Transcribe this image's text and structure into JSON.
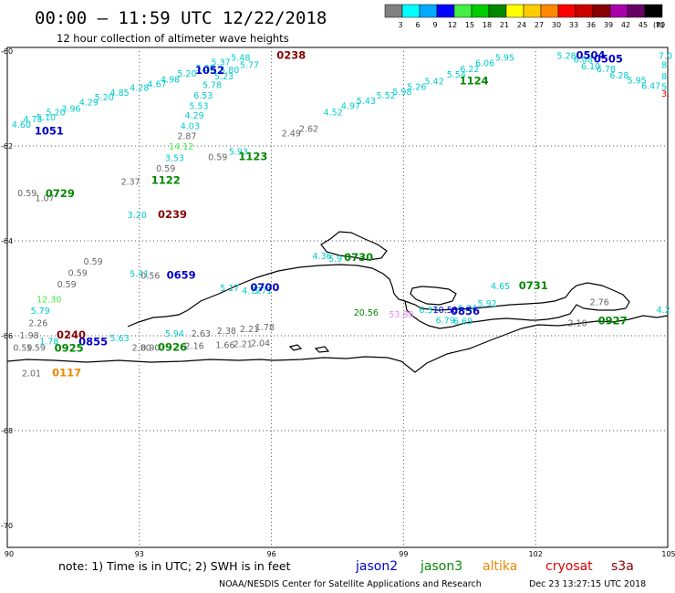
{
  "header": {
    "title": "00:00 – 11:59 UTC 12/22/2018",
    "subtitle": "12 hour collection of altimeter wave heights"
  },
  "colorbar": {
    "labels": [
      "3",
      "6",
      "9",
      "12",
      "15",
      "18",
      "21",
      "24",
      "27",
      "30",
      "33",
      "36",
      "39",
      "42",
      "45",
      "70"
    ],
    "unit": "(ft)",
    "colors": [
      "#808080",
      "#00ffff",
      "#00aaff",
      "#0000ff",
      "#44ee44",
      "#00cc00",
      "#008800",
      "#ffff00",
      "#ffcc00",
      "#ff8800",
      "#ff0000",
      "#cc0000",
      "#880000",
      "#aa00aa",
      "#660066",
      "#000000"
    ]
  },
  "axes": {
    "lon_labels": [
      "90",
      "93",
      "96",
      "99",
      "102",
      "105"
    ],
    "lat_labels": [
      "-60",
      "-62",
      "-64",
      "-66",
      "-68",
      "-70"
    ],
    "lon_range": [
      90,
      105
    ],
    "lat_range": [
      -70,
      -60
    ]
  },
  "points": [
    {
      "text": "4.60",
      "lon": 90.32,
      "lat": -61.62,
      "color": "#00cccc"
    },
    {
      "text": "4.75",
      "lon": 90.58,
      "lat": -61.5,
      "color": "#00cccc"
    },
    {
      "text": "5.10",
      "lon": 90.88,
      "lat": -61.46,
      "color": "#00cccc"
    },
    {
      "text": "5.20",
      "lon": 91.1,
      "lat": -61.36,
      "color": "#00cccc"
    },
    {
      "text": "3.96",
      "lon": 91.45,
      "lat": -61.28,
      "color": "#00cccc"
    },
    {
      "text": "4.29",
      "lon": 91.85,
      "lat": -61.14,
      "color": "#00cccc"
    },
    {
      "text": "5.20",
      "lon": 92.2,
      "lat": -61.04,
      "color": "#00cccc"
    },
    {
      "text": "4.85",
      "lon": 92.55,
      "lat": -60.94,
      "color": "#00cccc"
    },
    {
      "text": "4.28",
      "lon": 93.0,
      "lat": -60.84,
      "color": "#00cccc"
    },
    {
      "text": "4.67",
      "lon": 93.4,
      "lat": -60.76,
      "color": "#00cccc"
    },
    {
      "text": "4.98",
      "lon": 93.7,
      "lat": -60.66,
      "color": "#00cccc"
    },
    {
      "text": "5.20",
      "lon": 94.08,
      "lat": -60.54,
      "color": "#00cccc"
    },
    {
      "text": "5.30",
      "lon": 94.5,
      "lat": -60.42,
      "color": "#00cccc"
    },
    {
      "text": "5.37",
      "lon": 94.85,
      "lat": -60.3,
      "color": "#00cccc"
    },
    {
      "text": "5.48",
      "lon": 95.3,
      "lat": -60.2,
      "color": "#00cccc"
    },
    {
      "text": "5.77",
      "lon": 95.5,
      "lat": -60.36,
      "color": "#00cccc"
    },
    {
      "text": "5.80",
      "lon": 95.05,
      "lat": -60.46,
      "color": "#00cccc"
    },
    {
      "text": "5.23",
      "lon": 94.92,
      "lat": -60.6,
      "color": "#00cccc"
    },
    {
      "text": "5.78",
      "lon": 94.65,
      "lat": -60.78,
      "color": "#00cccc"
    },
    {
      "text": "6.53",
      "lon": 94.45,
      "lat": -61.0,
      "color": "#00cccc"
    },
    {
      "text": "5.53",
      "lon": 94.35,
      "lat": -61.22,
      "color": "#00cccc"
    },
    {
      "text": "4.29",
      "lon": 94.25,
      "lat": -61.42,
      "color": "#00cccc"
    },
    {
      "text": "4.03",
      "lon": 94.15,
      "lat": -61.64,
      "color": "#00cccc"
    },
    {
      "text": "2.87",
      "lon": 94.08,
      "lat": -61.86,
      "color": "#666666"
    },
    {
      "text": "14.12",
      "lon": 93.95,
      "lat": -62.08,
      "color": "#44ee44"
    },
    {
      "text": "3.53",
      "lon": 93.8,
      "lat": -62.32,
      "color": "#00cccc"
    },
    {
      "text": "0.59",
      "lon": 93.6,
      "lat": -62.54,
      "color": "#666666"
    },
    {
      "text": "2.37",
      "lon": 92.8,
      "lat": -62.82,
      "color": "#666666"
    },
    {
      "text": "0.59",
      "lon": 94.78,
      "lat": -62.3,
      "color": "#666666"
    },
    {
      "text": "5.93",
      "lon": 95.25,
      "lat": -62.18,
      "color": "#00cccc"
    },
    {
      "text": "0.59",
      "lon": 90.45,
      "lat": -63.06,
      "color": "#666666"
    },
    {
      "text": "1.07",
      "lon": 90.85,
      "lat": -63.16,
      "color": "#666666"
    },
    {
      "text": "3.20",
      "lon": 92.95,
      "lat": -63.52,
      "color": "#00cccc"
    },
    {
      "text": "2.49",
      "lon": 96.45,
      "lat": -61.8,
      "color": "#666666"
    },
    {
      "text": "2.62",
      "lon": 96.85,
      "lat": -61.7,
      "color": "#666666"
    },
    {
      "text": "4.52",
      "lon": 97.4,
      "lat": -61.36,
      "color": "#00cccc"
    },
    {
      "text": "4.97",
      "lon": 97.8,
      "lat": -61.22,
      "color": "#00cccc"
    },
    {
      "text": "5.43",
      "lon": 98.15,
      "lat": -61.12,
      "color": "#00cccc"
    },
    {
      "text": "5.52",
      "lon": 98.6,
      "lat": -61.0,
      "color": "#00cccc"
    },
    {
      "text": "5.98",
      "lon": 98.97,
      "lat": -60.92,
      "color": "#00cccc"
    },
    {
      "text": "5.26",
      "lon": 99.3,
      "lat": -60.82,
      "color": "#00cccc"
    },
    {
      "text": "5.42",
      "lon": 99.7,
      "lat": -60.7,
      "color": "#00cccc"
    },
    {
      "text": "5.54",
      "lon": 100.2,
      "lat": -60.56,
      "color": "#00cccc"
    },
    {
      "text": "6.22",
      "lon": 100.5,
      "lat": -60.44,
      "color": "#00cccc"
    },
    {
      "text": "6.06",
      "lon": 100.85,
      "lat": -60.32,
      "color": "#00cccc"
    },
    {
      "text": "5.95",
      "lon": 101.3,
      "lat": -60.2,
      "color": "#00cccc"
    },
    {
      "text": "5.28",
      "lon": 102.7,
      "lat": -60.16,
      "color": "#00cccc"
    },
    {
      "text": "6.08",
      "lon": 103.08,
      "lat": -60.24,
      "color": "#00cccc"
    },
    {
      "text": "6.10",
      "lon": 103.25,
      "lat": -60.38,
      "color": "#00cccc"
    },
    {
      "text": "6.78",
      "lon": 103.6,
      "lat": -60.44,
      "color": "#00cccc"
    },
    {
      "text": "6.28",
      "lon": 103.9,
      "lat": -60.58,
      "color": "#00cccc"
    },
    {
      "text": "5.95",
      "lon": 104.3,
      "lat": -60.68,
      "color": "#00cccc"
    },
    {
      "text": "6.47",
      "lon": 104.62,
      "lat": -60.8,
      "color": "#00cccc"
    },
    {
      "text": "7.0",
      "lon": 104.95,
      "lat": -60.16,
      "color": "#00cccc"
    },
    {
      "text": "8.",
      "lon": 104.95,
      "lat": -60.36,
      "color": "#00cccc"
    },
    {
      "text": "8.",
      "lon": 104.95,
      "lat": -60.6,
      "color": "#00cccc"
    },
    {
      "text": "5.",
      "lon": 104.95,
      "lat": -60.82,
      "color": "#00cccc"
    },
    {
      "text": "3.",
      "lon": 104.95,
      "lat": -60.96,
      "color": "#ff0000"
    },
    {
      "text": "0.59",
      "lon": 91.95,
      "lat": -64.5,
      "color": "#666666"
    },
    {
      "text": "0.59",
      "lon": 91.6,
      "lat": -64.74,
      "color": "#666666"
    },
    {
      "text": "0.59",
      "lon": 91.35,
      "lat": -64.98,
      "color": "#666666"
    },
    {
      "text": "12.30",
      "lon": 90.95,
      "lat": -65.3,
      "color": "#44ee44"
    },
    {
      "text": "5.79",
      "lon": 90.75,
      "lat": -65.54,
      "color": "#00cccc"
    },
    {
      "text": "2.26",
      "lon": 90.7,
      "lat": -65.8,
      "color": "#666666"
    },
    {
      "text": "1.98",
      "lon": 90.5,
      "lat": -66.06,
      "color": "#666666"
    },
    {
      "text": "1.78",
      "lon": 90.95,
      "lat": -66.18,
      "color": "#00cccc"
    },
    {
      "text": "0.59",
      "lon": 90.35,
      "lat": -66.32,
      "color": "#666666"
    },
    {
      "text": "1.59",
      "lon": 90.65,
      "lat": -66.32,
      "color": "#666666"
    },
    {
      "text": "2.01",
      "lon": 90.55,
      "lat": -66.86,
      "color": "#666666"
    },
    {
      "text": "5.63",
      "lon": 92.55,
      "lat": -66.12,
      "color": "#00cccc"
    },
    {
      "text": "5.41",
      "lon": 93.0,
      "lat": -64.76,
      "color": "#00cccc"
    },
    {
      "text": "0.56",
      "lon": 93.25,
      "lat": -64.8,
      "color": "#666666"
    },
    {
      "text": "5.94",
      "lon": 93.8,
      "lat": -66.02,
      "color": "#00cccc"
    },
    {
      "text": "2.80",
      "lon": 93.05,
      "lat": -66.32,
      "color": "#666666"
    },
    {
      "text": "0.90",
      "lon": 93.25,
      "lat": -66.32,
      "color": "#666666"
    },
    {
      "text": "2.63",
      "lon": 94.4,
      "lat": -66.02,
      "color": "#666666"
    },
    {
      "text": "2.16",
      "lon": 94.25,
      "lat": -66.28,
      "color": "#666666"
    },
    {
      "text": "2.38",
      "lon": 94.98,
      "lat": -65.96,
      "color": "#666666"
    },
    {
      "text": "1.66",
      "lon": 94.95,
      "lat": -66.26,
      "color": "#666666"
    },
    {
      "text": "2.21",
      "lon": 95.5,
      "lat": -65.92,
      "color": "#666666"
    },
    {
      "text": "2.21",
      "lon": 95.35,
      "lat": -66.24,
      "color": "#666666"
    },
    {
      "text": "1.78",
      "lon": 95.85,
      "lat": -65.88,
      "color": "#666666"
    },
    {
      "text": "2.04",
      "lon": 95.75,
      "lat": -66.22,
      "color": "#666666"
    },
    {
      "text": "5.17",
      "lon": 95.05,
      "lat": -65.06,
      "color": "#00cccc"
    },
    {
      "text": "4.77",
      "lon": 95.55,
      "lat": -65.12,
      "color": "#00cccc"
    },
    {
      "text": "5.71",
      "lon": 95.8,
      "lat": -65.12,
      "color": "#00cccc"
    },
    {
      "text": "4.36",
      "lon": 97.15,
      "lat": -64.38,
      "color": "#00cccc"
    },
    {
      "text": "5.9",
      "lon": 97.45,
      "lat": -64.44,
      "color": "#00cccc"
    },
    {
      "text": "20.56",
      "lon": 98.15,
      "lat": -65.58,
      "color": "#008800"
    },
    {
      "text": "53.88",
      "lon": 98.95,
      "lat": -65.62,
      "color": "#ee88ee"
    },
    {
      "text": "6.37",
      "lon": 99.57,
      "lat": -65.52,
      "color": "#00cccc"
    },
    {
      "text": "10.50",
      "lon": 99.95,
      "lat": -65.52,
      "color": "#0000ff"
    },
    {
      "text": "6.34",
      "lon": 100.45,
      "lat": -65.48,
      "color": "#00cccc"
    },
    {
      "text": "5.92",
      "lon": 100.9,
      "lat": -65.38,
      "color": "#00cccc"
    },
    {
      "text": "6.79",
      "lon": 99.95,
      "lat": -65.74,
      "color": "#00cccc"
    },
    {
      "text": "6.69",
      "lon": 100.35,
      "lat": -65.76,
      "color": "#00cccc"
    },
    {
      "text": "4.65",
      "lon": 101.2,
      "lat": -65.02,
      "color": "#00cccc"
    },
    {
      "text": "2.76",
      "lon": 103.45,
      "lat": -65.36,
      "color": "#666666"
    },
    {
      "text": "2.10",
      "lon": 102.95,
      "lat": -65.8,
      "color": "#666666"
    },
    {
      "text": "4.2",
      "lon": 104.9,
      "lat": -65.52,
      "color": "#00cccc"
    }
  ],
  "passes": [
    {
      "text": "0238",
      "lon": 96.45,
      "lat": -60.16,
      "color": "#880000"
    },
    {
      "text": "1052",
      "lon": 94.6,
      "lat": -60.48,
      "color": "#0000cc"
    },
    {
      "text": "1051",
      "lon": 90.95,
      "lat": -61.76,
      "color": "#0000cc"
    },
    {
      "text": "1123",
      "lon": 95.58,
      "lat": -62.3,
      "color": "#008800"
    },
    {
      "text": "1122",
      "lon": 93.6,
      "lat": -62.8,
      "color": "#008800"
    },
    {
      "text": "0729",
      "lon": 91.2,
      "lat": -63.08,
      "color": "#008800"
    },
    {
      "text": "0239",
      "lon": 93.75,
      "lat": -63.52,
      "color": "#880000"
    },
    {
      "text": "1124",
      "lon": 100.6,
      "lat": -60.7,
      "color": "#008800"
    },
    {
      "text": "0504",
      "lon": 103.25,
      "lat": -60.16,
      "color": "#0000cc"
    },
    {
      "text": "0505",
      "lon": 103.65,
      "lat": -60.24,
      "color": "#0000cc"
    },
    {
      "text": "0730",
      "lon": 97.98,
      "lat": -64.42,
      "color": "#008800"
    },
    {
      "text": "0659",
      "lon": 93.95,
      "lat": -64.8,
      "color": "#0000cc"
    },
    {
      "text": "0700",
      "lon": 95.85,
      "lat": -65.06,
      "color": "#0000cc"
    },
    {
      "text": "0240",
      "lon": 91.45,
      "lat": -66.06,
      "color": "#880000"
    },
    {
      "text": "0855",
      "lon": 91.95,
      "lat": -66.2,
      "color": "#0000cc"
    },
    {
      "text": "0925",
      "lon": 91.4,
      "lat": -66.34,
      "color": "#008800"
    },
    {
      "text": "0926",
      "lon": 93.75,
      "lat": -66.32,
      "color": "#008800"
    },
    {
      "text": "0117",
      "lon": 91.35,
      "lat": -66.86,
      "color": "#ee8800"
    },
    {
      "text": "0856",
      "lon": 100.4,
      "lat": -65.56,
      "color": "#0000cc"
    },
    {
      "text": "0731",
      "lon": 101.95,
      "lat": -65.02,
      "color": "#008800"
    },
    {
      "text": "0927",
      "lon": 103.75,
      "lat": -65.76,
      "color": "#008800"
    }
  ],
  "footer": {
    "note": "note:  1) Time is in UTC;  2) SWH is in feet",
    "satellites": [
      {
        "name": "jason2",
        "color": "#0000cc"
      },
      {
        "name": "jason3",
        "color": "#008800"
      },
      {
        "name": "altika",
        "color": "#ee8800"
      },
      {
        "name": "cryosat",
        "color": "#dd0000"
      },
      {
        "name": "s3a",
        "color": "#880000"
      }
    ],
    "credit": "NOAA/NESDIS Center for Satellite Applications and Research",
    "timestamp": "Dec 23 13:27:15 UTC 2018"
  }
}
